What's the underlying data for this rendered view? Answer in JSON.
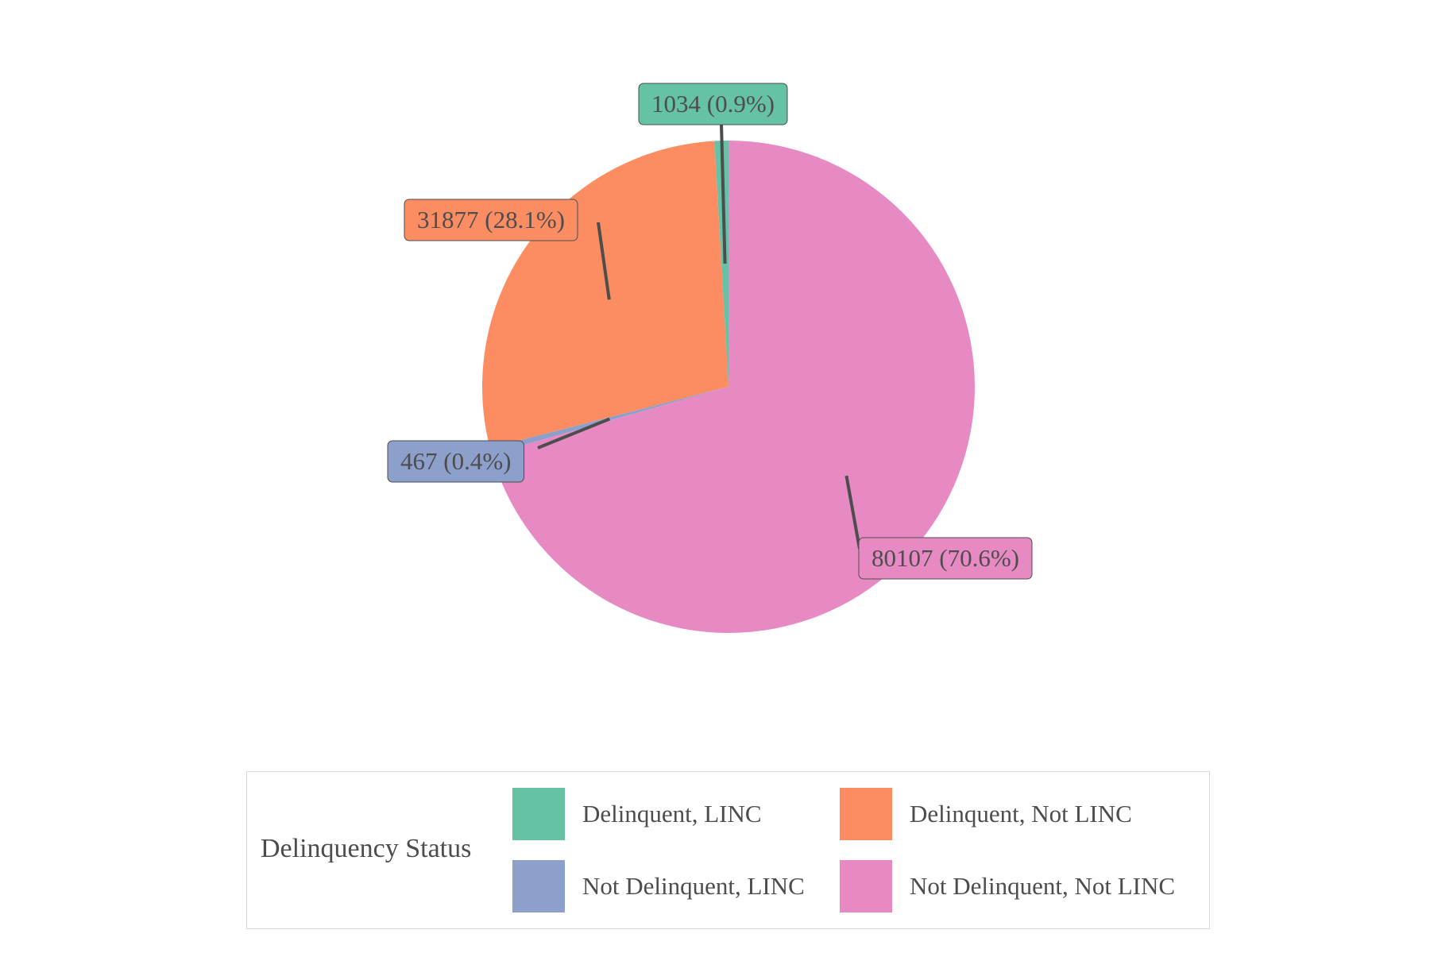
{
  "chart_data": {
    "type": "pie",
    "legend_title": "Delinquency Status",
    "legend_position": "bottom",
    "slices": [
      {
        "name": "Delinquent, LINC",
        "value": 1034,
        "label": "1034 (0.9%)",
        "color": "#66c2a5"
      },
      {
        "name": "Delinquent, Not LINC",
        "value": 31877,
        "label": "31877 (28.1%)",
        "color": "#fc8d62"
      },
      {
        "name": "Not Delinquent, LINC",
        "value": 467,
        "label": "467 (0.4%)",
        "color": "#8da0cb"
      },
      {
        "name": "Not Delinquent, Not LINC",
        "value": 80107,
        "label": "80107 (70.6%)",
        "color": "#e78ac3"
      }
    ]
  }
}
